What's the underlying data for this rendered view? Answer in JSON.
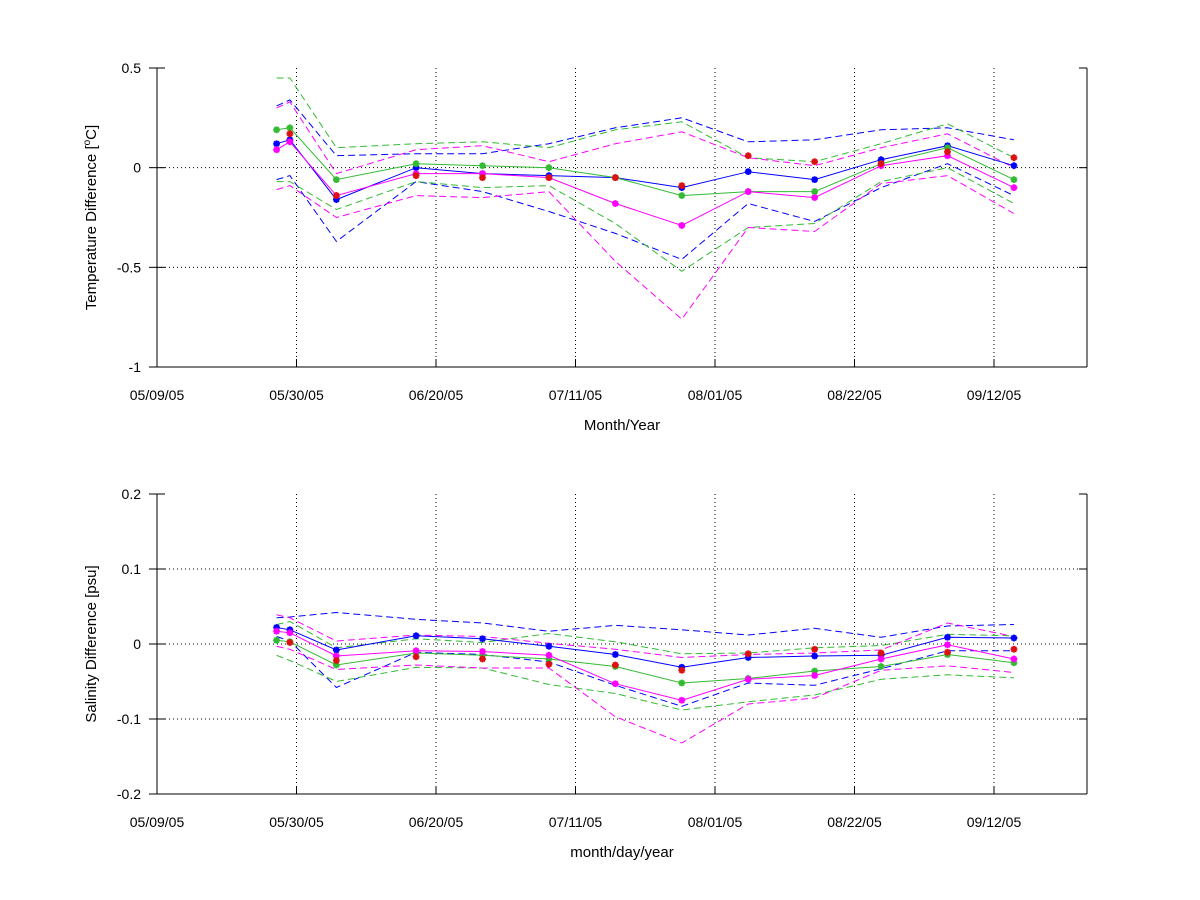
{
  "chart_data": [
    {
      "type": "line",
      "xlabel": "Month/Year",
      "ylabel": "Temperature Difference [oC]",
      "ylabel_parts": {
        "before": "Temperature Difference [",
        "sup": "o",
        "after": "C]"
      },
      "xlim": [
        "05/09/05",
        "09/26/05"
      ],
      "ylim": [
        -1,
        0.5
      ],
      "xticks": [
        "05/09/05",
        "05/30/05",
        "06/20/05",
        "07/11/05",
        "08/01/05",
        "08/22/05",
        "09/12/05"
      ],
      "yticks": [
        -1,
        -0.5,
        0,
        0.5
      ],
      "ytick_labels": [
        "-1",
        "-0.5",
        "0",
        "0.5"
      ],
      "grid": true,
      "colors": {
        "blue": "#0000ff",
        "green": "#33bb33",
        "magenta": "#ff00ff",
        "red": "#dd1111"
      },
      "series": [
        {
          "color": "blue",
          "style": "solid",
          "marker": true,
          "x": [
            "05/27/05",
            "05/29/05",
            "06/05/05",
            "06/17/05",
            "06/27/05",
            "07/07/05",
            "07/17/05",
            "07/27/05",
            "08/06/05",
            "08/16/05",
            "08/26/05",
            "09/05/05",
            "09/15/05"
          ],
          "y": [
            0.12,
            0.14,
            -0.16,
            0.0,
            -0.03,
            -0.04,
            -0.05,
            -0.1,
            -0.02,
            -0.06,
            0.04,
            0.11,
            0.01
          ]
        },
        {
          "color": "green",
          "style": "solid",
          "marker": true,
          "x": [
            "05/27/05",
            "05/29/05",
            "06/05/05",
            "06/17/05",
            "06/27/05",
            "07/07/05",
            "07/17/05",
            "07/27/05",
            "08/06/05",
            "08/16/05",
            "08/26/05",
            "09/05/05",
            "09/15/05"
          ],
          "y": [
            0.19,
            0.2,
            -0.06,
            0.02,
            0.01,
            0.0,
            -0.05,
            -0.14,
            -0.12,
            -0.12,
            0.02,
            0.1,
            -0.06
          ]
        },
        {
          "color": "magenta",
          "style": "solid",
          "marker": true,
          "x": [
            "05/27/05",
            "05/29/05",
            "06/05/05",
            "06/17/05",
            "06/27/05",
            "07/07/05",
            "07/17/05",
            "07/27/05",
            "08/06/05",
            "08/16/05",
            "08/26/05",
            "09/05/05",
            "09/15/05"
          ],
          "y": [
            0.09,
            0.13,
            -0.14,
            -0.03,
            -0.03,
            -0.05,
            -0.18,
            -0.29,
            -0.12,
            -0.15,
            0.01,
            0.06,
            -0.1
          ]
        },
        {
          "color": "red",
          "style": "marker-only",
          "marker": true,
          "x": [
            "05/29/05",
            "06/05/05",
            "06/17/05",
            "06/27/05",
            "07/07/05",
            "07/17/05",
            "07/27/05",
            "08/06/05",
            "08/16/05",
            "08/26/05",
            "09/05/05",
            "09/15/05"
          ],
          "y": [
            0.17,
            -0.14,
            -0.04,
            -0.05,
            -0.05,
            -0.05,
            -0.09,
            0.06,
            0.03,
            0.02,
            0.08,
            0.05
          ]
        },
        {
          "color": "blue",
          "style": "dashed",
          "x": [
            "05/27/05",
            "05/29/05",
            "06/05/05",
            "06/17/05",
            "06/27/05",
            "07/07/05",
            "07/17/05",
            "07/27/05",
            "08/06/05",
            "08/16/05",
            "08/26/05",
            "09/05/05",
            "09/15/05"
          ],
          "y": [
            0.31,
            0.34,
            0.06,
            0.07,
            0.07,
            0.12,
            0.2,
            0.25,
            0.13,
            0.14,
            0.19,
            0.2,
            0.14
          ]
        },
        {
          "color": "blue",
          "style": "dashed",
          "x": [
            "05/27/05",
            "05/29/05",
            "06/05/05",
            "06/17/05",
            "06/27/05",
            "07/07/05",
            "07/17/05",
            "07/27/05",
            "08/06/05",
            "08/16/05",
            "08/26/05",
            "09/05/05",
            "09/15/05"
          ],
          "y": [
            -0.06,
            -0.04,
            -0.37,
            -0.07,
            -0.12,
            -0.22,
            -0.33,
            -0.46,
            -0.18,
            -0.27,
            -0.1,
            0.02,
            -0.14
          ]
        },
        {
          "color": "green",
          "style": "dashed",
          "x": [
            "05/27/05",
            "05/29/05",
            "06/05/05",
            "06/17/05",
            "06/27/05",
            "07/07/05",
            "07/17/05",
            "07/27/05",
            "08/06/05",
            "08/16/05",
            "08/26/05",
            "09/05/05",
            "09/15/05"
          ],
          "y": [
            0.45,
            0.45,
            0.1,
            0.12,
            0.13,
            0.1,
            0.19,
            0.23,
            0.05,
            0.03,
            0.12,
            0.22,
            0.05
          ]
        },
        {
          "color": "green",
          "style": "dashed",
          "x": [
            "05/27/05",
            "05/29/05",
            "06/05/05",
            "06/17/05",
            "06/27/05",
            "07/07/05",
            "07/17/05",
            "07/27/05",
            "08/06/05",
            "08/16/05",
            "08/26/05",
            "09/05/05",
            "09/15/05"
          ],
          "y": [
            -0.07,
            -0.07,
            -0.21,
            -0.07,
            -0.1,
            -0.09,
            -0.28,
            -0.52,
            -0.3,
            -0.28,
            -0.07,
            0.0,
            -0.18
          ]
        },
        {
          "color": "magenta",
          "style": "dashed",
          "x": [
            "05/27/05",
            "05/29/05",
            "06/05/05",
            "06/17/05",
            "06/27/05",
            "07/07/05",
            "07/17/05",
            "07/27/05",
            "08/06/05",
            "08/16/05",
            "08/26/05",
            "09/05/05",
            "09/15/05"
          ],
          "y": [
            0.3,
            0.33,
            -0.03,
            0.09,
            0.11,
            0.03,
            0.12,
            0.18,
            0.05,
            0.01,
            0.1,
            0.17,
            0.0
          ]
        },
        {
          "color": "magenta",
          "style": "dashed",
          "x": [
            "05/27/05",
            "05/29/05",
            "06/05/05",
            "06/17/05",
            "06/27/05",
            "07/07/05",
            "07/17/05",
            "07/27/05",
            "08/06/05",
            "08/16/05",
            "08/26/05",
            "09/05/05",
            "09/15/05"
          ],
          "y": [
            -0.11,
            -0.09,
            -0.25,
            -0.14,
            -0.15,
            -0.12,
            -0.47,
            -0.76,
            -0.3,
            -0.32,
            -0.08,
            -0.04,
            -0.23
          ]
        }
      ]
    },
    {
      "type": "line",
      "xlabel": "month/day/year",
      "ylabel": "Salinity Difference [psu]",
      "xlim": [
        "05/09/05",
        "09/26/05"
      ],
      "ylim": [
        -0.2,
        0.2
      ],
      "xticks": [
        "05/09/05",
        "05/30/05",
        "06/20/05",
        "07/11/05",
        "08/01/05",
        "08/22/05",
        "09/12/05"
      ],
      "yticks": [
        -0.2,
        -0.1,
        0,
        0.1,
        0.2
      ],
      "ytick_labels": [
        "-0.2",
        "-0.1",
        "0",
        "0.1",
        "0.2"
      ],
      "grid": true,
      "colors": {
        "blue": "#0000ff",
        "green": "#33bb33",
        "magenta": "#ff00ff",
        "red": "#dd1111"
      },
      "series": [
        {
          "color": "blue",
          "style": "solid",
          "marker": true,
          "x": [
            "05/27/05",
            "05/29/05",
            "06/05/05",
            "06/17/05",
            "06/27/05",
            "07/07/05",
            "07/17/05",
            "07/27/05",
            "08/06/05",
            "08/16/05",
            "08/26/05",
            "09/05/05",
            "09/15/05"
          ],
          "y": [
            0.022,
            0.019,
            -0.008,
            0.011,
            0.007,
            -0.003,
            -0.014,
            -0.031,
            -0.018,
            -0.016,
            -0.015,
            0.009,
            0.008
          ]
        },
        {
          "color": "green",
          "style": "solid",
          "marker": true,
          "x": [
            "05/27/05",
            "05/29/05",
            "06/05/05",
            "06/17/05",
            "06/27/05",
            "07/07/05",
            "07/17/05",
            "07/27/05",
            "08/06/05",
            "08/16/05",
            "08/26/05",
            "09/05/05",
            "09/15/05"
          ],
          "y": [
            0.005,
            0.003,
            -0.028,
            -0.012,
            -0.015,
            -0.02,
            -0.03,
            -0.052,
            -0.046,
            -0.036,
            -0.03,
            -0.014,
            -0.025
          ]
        },
        {
          "color": "magenta",
          "style": "solid",
          "marker": true,
          "x": [
            "05/27/05",
            "05/29/05",
            "06/05/05",
            "06/17/05",
            "06/27/05",
            "07/07/05",
            "07/17/05",
            "07/27/05",
            "08/06/05",
            "08/16/05",
            "08/26/05",
            "09/05/05",
            "09/15/05"
          ],
          "y": [
            0.017,
            0.015,
            -0.016,
            -0.009,
            -0.01,
            -0.015,
            -0.053,
            -0.075,
            -0.047,
            -0.042,
            -0.02,
            -0.001,
            -0.02
          ]
        },
        {
          "color": "red",
          "style": "marker-only",
          "marker": true,
          "x": [
            "05/29/05",
            "06/05/05",
            "06/17/05",
            "06/27/05",
            "07/07/05",
            "07/17/05",
            "07/27/05",
            "08/06/05",
            "08/16/05",
            "08/26/05",
            "09/05/05",
            "09/15/05"
          ],
          "y": [
            0.002,
            -0.022,
            -0.017,
            -0.02,
            -0.027,
            -0.028,
            -0.035,
            -0.013,
            -0.007,
            -0.012,
            -0.011,
            -0.007
          ]
        },
        {
          "color": "blue",
          "style": "dashed",
          "x": [
            "05/27/05",
            "05/29/05",
            "06/05/05",
            "06/17/05",
            "06/27/05",
            "07/07/05",
            "07/17/05",
            "07/27/05",
            "08/06/05",
            "08/16/05",
            "08/26/05",
            "09/05/05",
            "09/15/05"
          ],
          "y": [
            0.035,
            0.036,
            0.042,
            0.033,
            0.028,
            0.017,
            0.025,
            0.019,
            0.012,
            0.021,
            0.009,
            0.024,
            0.026
          ]
        },
        {
          "color": "blue",
          "style": "dashed",
          "x": [
            "05/27/05",
            "05/29/05",
            "06/05/05",
            "06/17/05",
            "06/27/05",
            "07/07/05",
            "07/17/05",
            "07/27/05",
            "08/06/05",
            "08/16/05",
            "08/26/05",
            "09/05/05",
            "09/15/05"
          ],
          "y": [
            0.01,
            0.004,
            -0.058,
            -0.011,
            -0.014,
            -0.024,
            -0.055,
            -0.083,
            -0.052,
            -0.055,
            -0.033,
            -0.009,
            -0.009
          ]
        },
        {
          "color": "green",
          "style": "dashed",
          "x": [
            "05/27/05",
            "05/29/05",
            "06/05/05",
            "06/17/05",
            "06/27/05",
            "07/07/05",
            "07/17/05",
            "07/27/05",
            "08/06/05",
            "08/16/05",
            "08/26/05",
            "09/05/05",
            "09/15/05"
          ],
          "y": [
            0.026,
            0.03,
            -0.005,
            0.007,
            0.002,
            0.014,
            0.003,
            -0.013,
            -0.012,
            -0.005,
            -0.002,
            0.013,
            0.011
          ]
        },
        {
          "color": "green",
          "style": "dashed",
          "x": [
            "05/27/05",
            "05/29/05",
            "06/05/05",
            "06/17/05",
            "06/27/05",
            "07/07/05",
            "07/17/05",
            "07/27/05",
            "08/06/05",
            "08/16/05",
            "08/26/05",
            "09/05/05",
            "09/15/05"
          ],
          "y": [
            -0.015,
            -0.022,
            -0.05,
            -0.031,
            -0.032,
            -0.054,
            -0.066,
            -0.088,
            -0.077,
            -0.068,
            -0.047,
            -0.041,
            -0.045
          ]
        },
        {
          "color": "magenta",
          "style": "dashed",
          "x": [
            "05/27/05",
            "05/29/05",
            "06/05/05",
            "06/17/05",
            "06/27/05",
            "07/07/05",
            "07/17/05",
            "07/27/05",
            "08/06/05",
            "08/16/05",
            "08/26/05",
            "09/05/05",
            "09/15/05"
          ],
          "y": [
            0.039,
            0.035,
            0.004,
            0.012,
            0.01,
            0.001,
            -0.007,
            -0.018,
            -0.014,
            -0.012,
            -0.008,
            0.028,
            0.01
          ]
        },
        {
          "color": "magenta",
          "style": "dashed",
          "x": [
            "05/27/05",
            "05/29/05",
            "06/05/05",
            "06/17/05",
            "06/27/05",
            "07/07/05",
            "07/17/05",
            "07/27/05",
            "08/06/05",
            "08/16/05",
            "08/26/05",
            "09/05/05",
            "09/15/05"
          ],
          "y": [
            -0.003,
            -0.007,
            -0.034,
            -0.028,
            -0.032,
            -0.032,
            -0.097,
            -0.132,
            -0.08,
            -0.072,
            -0.035,
            -0.029,
            -0.038
          ]
        }
      ]
    }
  ]
}
